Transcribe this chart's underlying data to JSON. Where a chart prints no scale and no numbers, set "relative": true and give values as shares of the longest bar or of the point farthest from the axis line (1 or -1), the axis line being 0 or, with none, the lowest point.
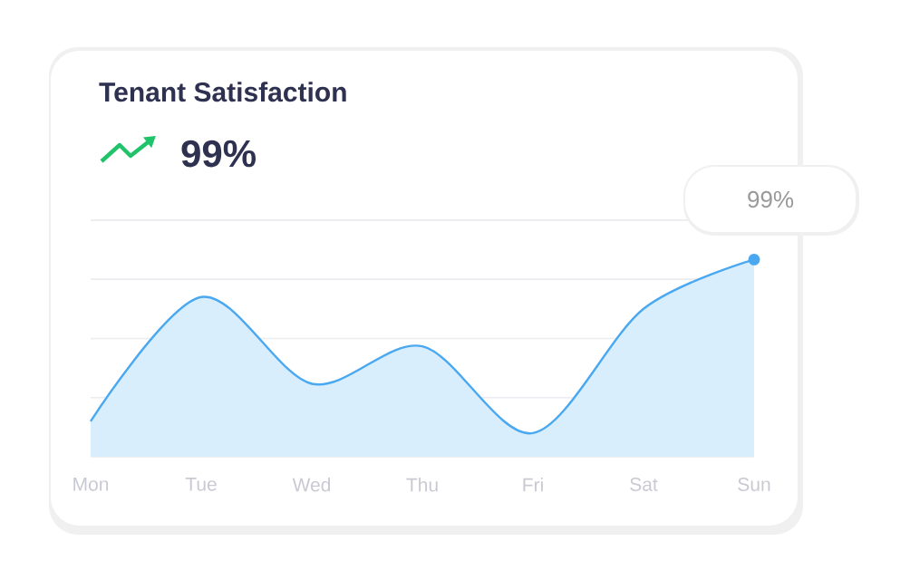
{
  "chart_data": {
    "type": "area",
    "title": "Tenant Satisfaction",
    "subtitle": "99%",
    "categories": [
      "Mon",
      "Tue",
      "Wed",
      "Thu",
      "Fri",
      "Sat",
      "Sun"
    ],
    "relative": true,
    "series": [
      {
        "color": "#4aa8f0",
        "values": [
          0.18,
          0.81,
          0.37,
          0.56,
          0.12,
          0.75,
          1.0
        ]
      }
    ],
    "annotations": [
      "99%"
    ],
    "grid": "y",
    "tick_labels": "x",
    "marker": "none",
    "line_style": "solid"
  }
}
